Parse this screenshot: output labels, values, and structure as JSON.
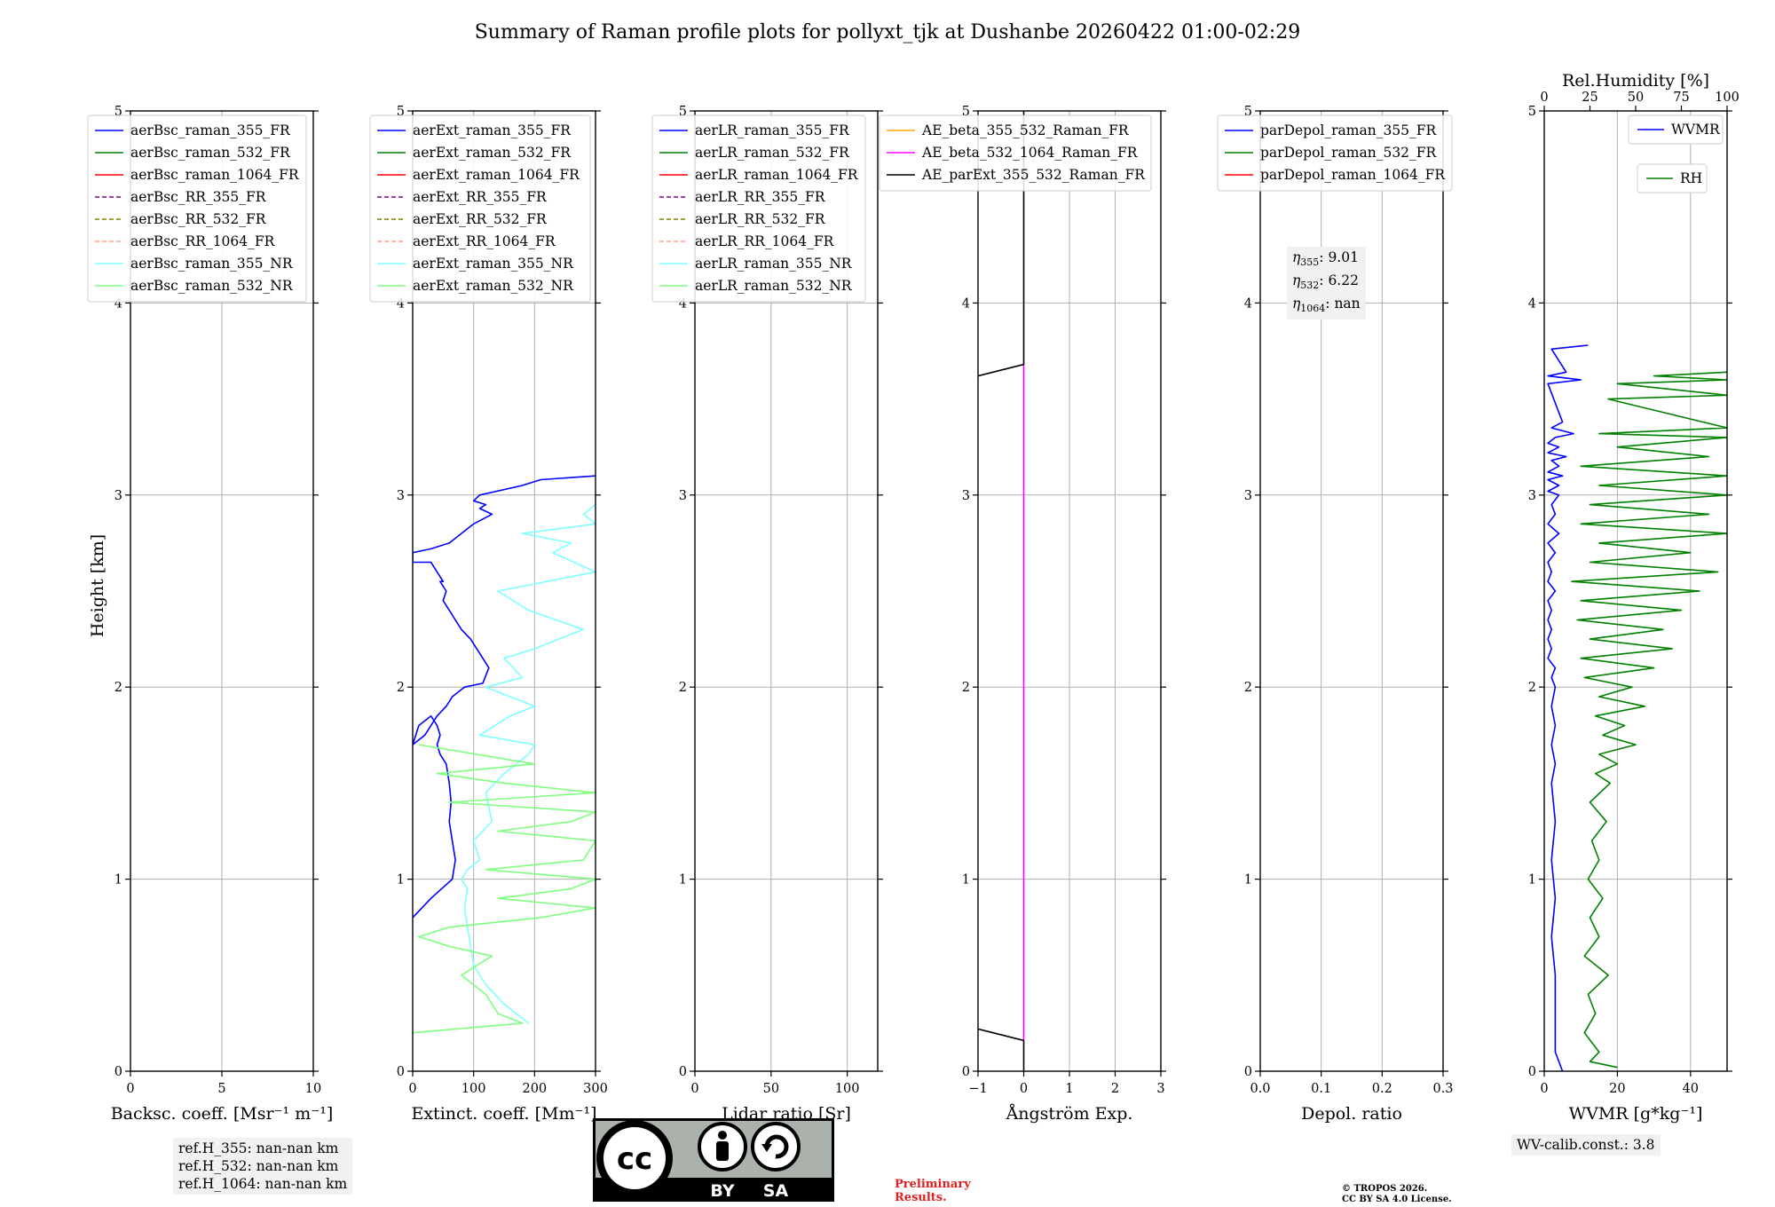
{
  "title": "Summary of Raman profile plots for pollyxt_tjk at Dushanbe 20260422 01:00-02:29",
  "ylabel": "Height [km]",
  "colors": {
    "blue": "#0000ff",
    "green": "#008000",
    "red": "#ff0000",
    "purple": "#800080",
    "olive": "#808000",
    "salmon": "#ffa07a",
    "cyan": "#7fffff",
    "lightgreen": "#7fff7f",
    "orange": "#ffa500",
    "magenta": "#ff00ff",
    "black": "#000000",
    "grid": "#b0b0b0",
    "prelim": "#e02020"
  },
  "chart_data": [
    {
      "type": "line",
      "id": "bsc",
      "xlabel": "Backsc. coeff. [Msr⁻¹ m⁻¹]",
      "xlim": [
        0,
        10
      ],
      "xticks": [
        0,
        5,
        10
      ],
      "xtick_labels": [
        "0",
        "5",
        "10"
      ],
      "ylim": [
        0,
        5
      ],
      "yticks": [
        0,
        1,
        2,
        3,
        4,
        5
      ],
      "legend": [
        {
          "label": "aerBsc_raman_355_FR",
          "color": "blue",
          "dash": false
        },
        {
          "label": "aerBsc_raman_532_FR",
          "color": "green",
          "dash": false
        },
        {
          "label": "aerBsc_raman_1064_FR",
          "color": "red",
          "dash": false
        },
        {
          "label": "aerBsc_RR_355_FR",
          "color": "purple",
          "dash": true
        },
        {
          "label": "aerBsc_RR_532_FR",
          "color": "olive",
          "dash": true
        },
        {
          "label": "aerBsc_RR_1064_FR",
          "color": "salmon",
          "dash": true
        },
        {
          "label": "aerBsc_raman_355_NR",
          "color": "cyan",
          "dash": false
        },
        {
          "label": "aerBsc_raman_532_NR",
          "color": "lightgreen",
          "dash": false
        }
      ],
      "series": []
    },
    {
      "type": "line",
      "id": "ext",
      "xlabel": "Extinct. coeff. [Mm⁻¹]",
      "xlim": [
        0,
        300
      ],
      "xticks": [
        0,
        100,
        200,
        300
      ],
      "xtick_labels": [
        "0",
        "100",
        "200",
        "300"
      ],
      "ylim": [
        0,
        5
      ],
      "yticks": [
        0,
        1,
        2,
        3,
        4,
        5
      ],
      "legend": [
        {
          "label": "aerExt_raman_355_FR",
          "color": "blue",
          "dash": false
        },
        {
          "label": "aerExt_raman_532_FR",
          "color": "green",
          "dash": false
        },
        {
          "label": "aerExt_raman_1064_FR",
          "color": "red",
          "dash": false
        },
        {
          "label": "aerExt_RR_355_FR",
          "color": "purple",
          "dash": true
        },
        {
          "label": "aerExt_RR_532_FR",
          "color": "olive",
          "dash": true
        },
        {
          "label": "aerExt_RR_1064_FR",
          "color": "salmon",
          "dash": true
        },
        {
          "label": "aerExt_raman_355_NR",
          "color": "cyan",
          "dash": false
        },
        {
          "label": "aerExt_raman_532_NR",
          "color": "lightgreen",
          "dash": false
        }
      ],
      "series": [
        {
          "name": "aerExt_raman_355_FR",
          "color": "blue",
          "x": [
            0,
            30,
            65,
            70,
            65,
            60,
            63,
            60,
            55,
            45,
            40,
            45,
            40,
            30,
            10,
            0,
            20,
            40,
            55,
            65,
            85,
            115,
            125,
            115,
            105,
            95,
            80,
            70,
            60,
            50,
            55,
            45,
            50,
            40,
            30,
            0,
            0,
            30,
            60,
            80,
            100,
            130,
            110,
            120,
            100,
            110,
            180,
            210,
            300
          ],
          "y": [
            0.8,
            0.9,
            1.0,
            1.1,
            1.2,
            1.3,
            1.4,
            1.5,
            1.6,
            1.65,
            1.7,
            1.75,
            1.8,
            1.85,
            1.8,
            1.7,
            1.75,
            1.85,
            1.9,
            1.95,
            2.0,
            2.02,
            2.1,
            2.15,
            2.2,
            2.25,
            2.3,
            2.35,
            2.4,
            2.45,
            2.5,
            2.55,
            2.55,
            2.6,
            2.65,
            2.65,
            2.7,
            2.72,
            2.75,
            2.8,
            2.85,
            2.9,
            2.93,
            2.95,
            2.97,
            3.0,
            3.05,
            3.08,
            3.1
          ]
        },
        {
          "name": "aerExt_raman_355_NR",
          "color": "cyan",
          "x": [
            190,
            150,
            120,
            100,
            95,
            90,
            85,
            90,
            80,
            90,
            110,
            100,
            130,
            120,
            150,
            190,
            200,
            110,
            160,
            200,
            120,
            180,
            150,
            200,
            280,
            190,
            140,
            300,
            230,
            260,
            180,
            300,
            280,
            300,
            300
          ],
          "y": [
            0.25,
            0.35,
            0.45,
            0.55,
            0.65,
            0.75,
            0.85,
            0.95,
            1.0,
            1.05,
            1.1,
            1.2,
            1.3,
            1.45,
            1.55,
            1.65,
            1.7,
            1.75,
            1.85,
            1.9,
            2.0,
            2.05,
            2.15,
            2.2,
            2.3,
            2.4,
            2.5,
            2.6,
            2.7,
            2.75,
            2.8,
            2.85,
            2.9,
            2.95,
            3.0
          ]
        },
        {
          "name": "aerExt_raman_532_NR",
          "color": "lightgreen",
          "x": [
            0,
            180,
            140,
            120,
            100,
            80,
            130,
            60,
            10,
            60,
            210,
            300,
            140,
            260,
            300,
            120,
            280,
            300,
            140,
            260,
            300,
            60,
            300,
            150,
            40,
            200,
            10
          ],
          "y": [
            0.2,
            0.25,
            0.3,
            0.4,
            0.45,
            0.5,
            0.6,
            0.65,
            0.7,
            0.75,
            0.8,
            0.85,
            0.9,
            0.95,
            1.0,
            1.05,
            1.1,
            1.2,
            1.25,
            1.3,
            1.35,
            1.4,
            1.45,
            1.5,
            1.55,
            1.6,
            1.7
          ]
        }
      ]
    },
    {
      "type": "line",
      "id": "lr",
      "xlabel": "Lidar ratio [Sr]",
      "xlim": [
        0,
        120
      ],
      "xticks": [
        0,
        50,
        100
      ],
      "xtick_labels": [
        "0",
        "50",
        "100"
      ],
      "ylim": [
        0,
        5
      ],
      "yticks": [
        0,
        1,
        2,
        3,
        4,
        5
      ],
      "legend": [
        {
          "label": "aerLR_raman_355_FR",
          "color": "blue",
          "dash": false
        },
        {
          "label": "aerLR_raman_532_FR",
          "color": "green",
          "dash": false
        },
        {
          "label": "aerLR_raman_1064_FR",
          "color": "red",
          "dash": false
        },
        {
          "label": "aerLR_RR_355_FR",
          "color": "purple",
          "dash": true
        },
        {
          "label": "aerLR_RR_532_FR",
          "color": "olive",
          "dash": true
        },
        {
          "label": "aerLR_RR_1064_FR",
          "color": "salmon",
          "dash": true
        },
        {
          "label": "aerLR_raman_355_NR",
          "color": "cyan",
          "dash": false
        },
        {
          "label": "aerLR_raman_532_NR",
          "color": "lightgreen",
          "dash": false
        }
      ],
      "series": []
    },
    {
      "type": "line",
      "id": "ae",
      "xlabel": "Ångström Exp.",
      "xlim": [
        -1,
        3
      ],
      "xticks": [
        -1,
        0,
        1,
        2,
        3
      ],
      "xtick_labels": [
        "−1",
        "0",
        "1",
        "2",
        "3"
      ],
      "ylim": [
        0,
        5
      ],
      "yticks": [
        0,
        1,
        2,
        3,
        4,
        5
      ],
      "legend": [
        {
          "label": "AE_beta_355_532_Raman_FR",
          "color": "orange",
          "dash": false
        },
        {
          "label": "AE_beta_532_1064_Raman_FR",
          "color": "magenta",
          "dash": false
        },
        {
          "label": "AE_parExt_355_532_Raman_FR",
          "color": "black",
          "dash": false
        }
      ],
      "series": [
        {
          "name": "AE_beta_532_1064_Raman_FR",
          "color": "magenta",
          "x": [
            0,
            0
          ],
          "y": [
            0.16,
            3.68
          ]
        },
        {
          "name": "AE_parExt_355_532_Raman_FR (low)",
          "color": "black",
          "x": [
            -1,
            0,
            0
          ],
          "y": [
            0.22,
            0.16,
            0.0
          ]
        },
        {
          "name": "AE_parExt_355_532_Raman_FR (high)",
          "color": "black",
          "x": [
            -1,
            0,
            0
          ],
          "y": [
            3.62,
            3.68,
            5.0
          ]
        }
      ]
    },
    {
      "type": "line",
      "id": "dep",
      "xlabel": "Depol. ratio",
      "xlim": [
        0,
        0.3
      ],
      "xticks": [
        0,
        0.1,
        0.2,
        0.3
      ],
      "xtick_labels": [
        "0.0",
        "0.1",
        "0.2",
        "0.3"
      ],
      "ylim": [
        0,
        5
      ],
      "yticks": [
        0,
        1,
        2,
        3,
        4,
        5
      ],
      "legend": [
        {
          "label": "parDepol_raman_355_FR",
          "color": "blue",
          "dash": false
        },
        {
          "label": "parDepol_raman_532_FR",
          "color": "green",
          "dash": false
        },
        {
          "label": "parDepol_raman_1064_FR",
          "color": "red",
          "dash": false
        }
      ],
      "series": []
    },
    {
      "type": "line",
      "id": "wv",
      "xlabel": "WVMR [g*kg⁻¹]",
      "xlim": [
        0,
        50
      ],
      "xticks": [
        0,
        20,
        40
      ],
      "xtick_labels": [
        "0",
        "20",
        "40"
      ],
      "top_xlabel": "Rel.Humidity [%]",
      "top_xlim": [
        0,
        100
      ],
      "top_xticks": [
        0,
        25,
        50,
        75,
        100
      ],
      "top_xtick_labels": [
        "0",
        "25",
        "50",
        "75",
        "100"
      ],
      "ylim": [
        0,
        5
      ],
      "yticks": [
        0,
        1,
        2,
        3,
        4,
        5
      ],
      "legend": [
        {
          "label": "WVMR",
          "color": "blue",
          "dash": false
        },
        {
          "label": "RH",
          "color": "green",
          "dash": false
        }
      ],
      "series": [
        {
          "name": "WVMR",
          "color": "blue",
          "axis": "bottom",
          "x": [
            5,
            4,
            3,
            3,
            3,
            2,
            3,
            2,
            3,
            2,
            3,
            2,
            3,
            2,
            3,
            2,
            3,
            1,
            2,
            1,
            2,
            1,
            2,
            1,
            3,
            1,
            2,
            1,
            3,
            1,
            4,
            1,
            3,
            2,
            4,
            1,
            4,
            1,
            5,
            1,
            4,
            2,
            6,
            1,
            4,
            1,
            3,
            8,
            2,
            5,
            1,
            10,
            1,
            6,
            2,
            12
          ],
          "y": [
            0.0,
            0.05,
            0.1,
            0.3,
            0.5,
            0.7,
            0.9,
            1.1,
            1.3,
            1.5,
            1.6,
            1.7,
            1.8,
            1.9,
            2.0,
            2.05,
            2.1,
            2.15,
            2.2,
            2.25,
            2.3,
            2.35,
            2.4,
            2.45,
            2.5,
            2.55,
            2.6,
            2.65,
            2.7,
            2.75,
            2.8,
            2.85,
            2.9,
            2.95,
            3.0,
            3.02,
            3.05,
            3.08,
            3.1,
            3.12,
            3.15,
            3.18,
            3.2,
            3.22,
            3.25,
            3.27,
            3.3,
            3.32,
            3.35,
            3.38,
            3.58,
            3.6,
            3.62,
            3.64,
            3.76,
            3.78
          ]
        },
        {
          "name": "RH",
          "color": "green",
          "axis": "top",
          "x": [
            40,
            25,
            30,
            22,
            28,
            24,
            35,
            22,
            30,
            25,
            32,
            24,
            30,
            26,
            34,
            25,
            36,
            28,
            40,
            30,
            50,
            32,
            44,
            28,
            55,
            30,
            48,
            22,
            60,
            20,
            70,
            25,
            65,
            18,
            75,
            20,
            85,
            15,
            95,
            25,
            80,
            30,
            100,
            20,
            90,
            25,
            100,
            30,
            100,
            20,
            90,
            40,
            100,
            30,
            100,
            35,
            100,
            40,
            100,
            60,
            100
          ],
          "y": [
            0.02,
            0.05,
            0.1,
            0.2,
            0.3,
            0.4,
            0.5,
            0.6,
            0.7,
            0.8,
            0.9,
            1.0,
            1.1,
            1.2,
            1.3,
            1.4,
            1.5,
            1.55,
            1.6,
            1.65,
            1.7,
            1.75,
            1.8,
            1.85,
            1.9,
            1.95,
            2.0,
            2.05,
            2.1,
            2.15,
            2.2,
            2.25,
            2.3,
            2.35,
            2.4,
            2.45,
            2.5,
            2.55,
            2.6,
            2.65,
            2.7,
            2.75,
            2.8,
            2.85,
            2.9,
            2.95,
            3.0,
            3.05,
            3.1,
            3.15,
            3.2,
            3.25,
            3.3,
            3.32,
            3.35,
            3.5,
            3.52,
            3.58,
            3.6,
            3.62,
            3.64
          ]
        }
      ]
    }
  ],
  "annotations": {
    "ref_h": [
      "ref.H_355: nan-nan km",
      "ref.H_532: nan-nan km",
      "ref.H_1064: nan-nan km"
    ],
    "eta": [
      {
        "sub": "355",
        "value": ": 9.01"
      },
      {
        "sub": "532",
        "value": ": 6.22"
      },
      {
        "sub": "1064",
        "value": ": nan"
      }
    ],
    "eta_symbol": "η",
    "wv_calib": "WV-calib.const.: 3.8",
    "preliminary": [
      "Preliminary",
      "Results."
    ],
    "copyright": [
      "© TROPOS 2026.",
      "CC BY SA 4.0 License."
    ],
    "license_badge": {
      "by": "BY",
      "sa": "SA",
      "cc": "cc"
    }
  }
}
